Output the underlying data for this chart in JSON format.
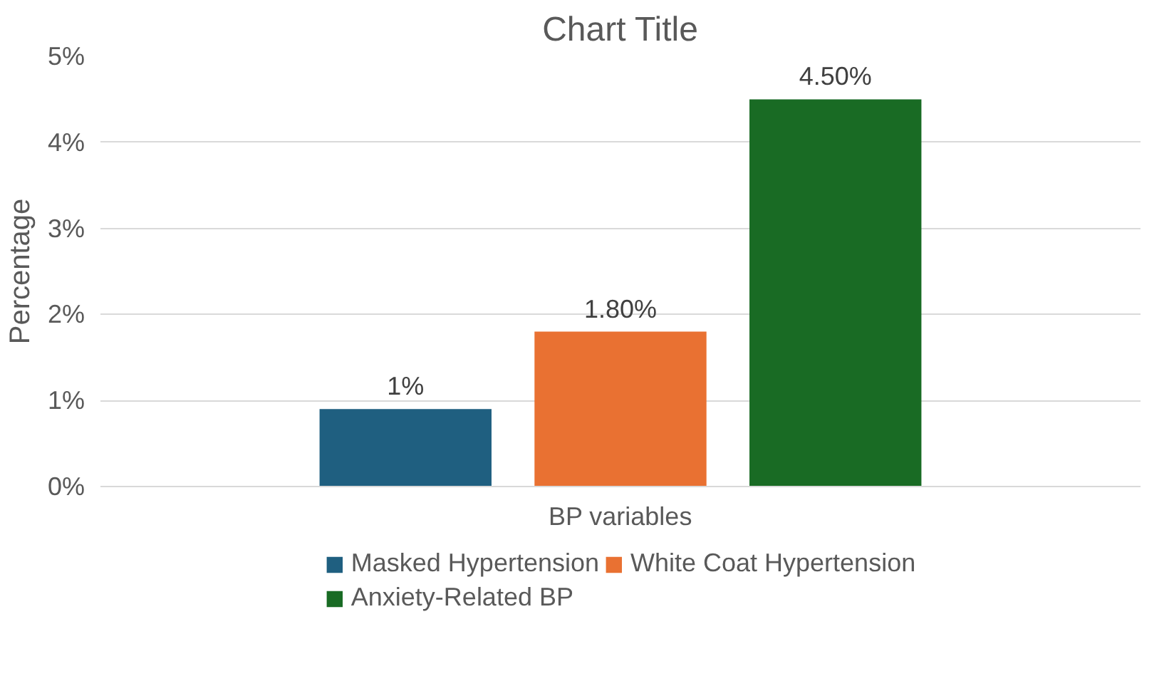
{
  "chart_data": {
    "type": "bar",
    "title": "Chart Title",
    "ylabel": "Percentage",
    "categories": [
      "BP variables"
    ],
    "series": [
      {
        "name": "Masked Hypertension",
        "color": "#1f5f80",
        "values": [
          0.9
        ],
        "value_labels": [
          "1%"
        ]
      },
      {
        "name": "White Coat Hypertension",
        "color": "#e97132",
        "values": [
          1.8
        ],
        "value_labels": [
          "1.80%"
        ]
      },
      {
        "name": "Anxiety-Related BP",
        "color": "#196b24",
        "values": [
          4.5
        ],
        "value_labels": [
          "4.50%"
        ]
      }
    ],
    "ylim": [
      0,
      5
    ],
    "yticks": [
      {
        "value": 0,
        "label": "0%"
      },
      {
        "value": 1,
        "label": "1%"
      },
      {
        "value": 2,
        "label": "2%"
      },
      {
        "value": 3,
        "label": "3%"
      },
      {
        "value": 4,
        "label": "4%"
      },
      {
        "value": 5,
        "label": "5%"
      }
    ],
    "grid": "y",
    "legend": "bottom"
  }
}
